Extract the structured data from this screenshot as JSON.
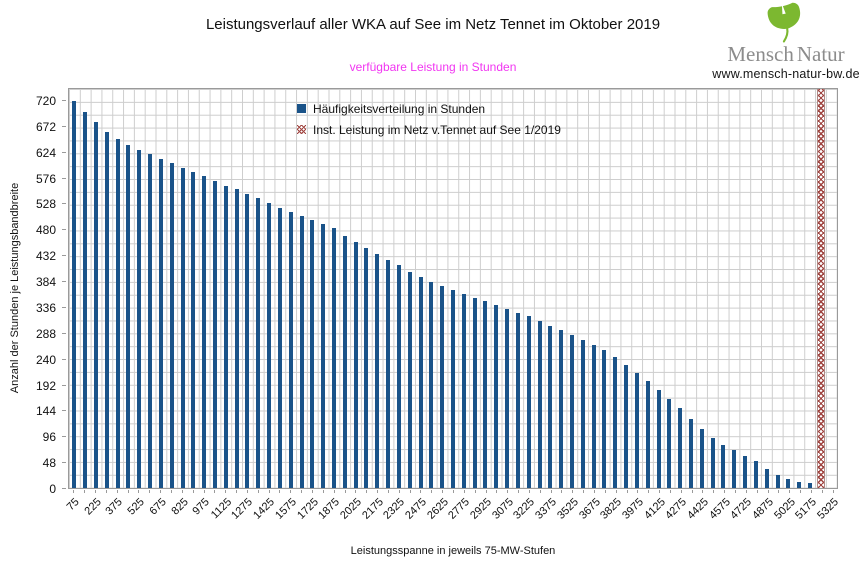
{
  "header": {
    "title": "Leistungsverlauf aller WKA auf See im Netz Tennet im Oktober 2019",
    "subtitle": "verfügbare Leistung in Stunden",
    "logo": {
      "leaf_icon": "ginkgo-leaf-icon",
      "leaf_color": "#7cb830",
      "brand_part1": "Mensch",
      "brand_part2": "Natur",
      "website": "www.mensch-natur-bw.de"
    }
  },
  "chart_data": {
    "type": "bar",
    "title": "Leistungsverlauf aller WKA auf See im Netz Tennet im Oktober 2019",
    "subtitle": "verfügbare Leistung in Stunden",
    "xlabel": "Leistungsspanne in jeweils 75-MW-Stufen",
    "ylabel": "Anzahl der Stunden je Leistungsbandbreite",
    "ylim": [
      0,
      744
    ],
    "yticks": [
      0,
      48,
      96,
      144,
      192,
      240,
      288,
      336,
      384,
      432,
      480,
      528,
      576,
      624,
      672,
      720
    ],
    "grid": {
      "minor_x_step": 75,
      "minor_y_step": 24,
      "color": "#cdcdcd"
    },
    "legend_position": "top-center-inside",
    "categories": [
      75,
      150,
      225,
      300,
      375,
      450,
      525,
      600,
      675,
      750,
      825,
      900,
      975,
      1050,
      1125,
      1200,
      1275,
      1350,
      1425,
      1500,
      1575,
      1650,
      1725,
      1800,
      1875,
      1950,
      2025,
      2100,
      2175,
      2250,
      2325,
      2400,
      2475,
      2550,
      2625,
      2700,
      2775,
      2850,
      2925,
      3000,
      3075,
      3150,
      3225,
      3300,
      3375,
      3450,
      3525,
      3600,
      3675,
      3750,
      3825,
      3900,
      3975,
      4050,
      4125,
      4200,
      4275,
      4350,
      4425,
      4500,
      4575,
      4650,
      4725,
      4800,
      4875,
      4950,
      5025,
      5100,
      5175,
      5250,
      5325
    ],
    "x_tick_labels": [
      "75",
      "225",
      "375",
      "525",
      "675",
      "825",
      "975",
      "1125",
      "1275",
      "1425",
      "1575",
      "1725",
      "1875",
      "2025",
      "2175",
      "2325",
      "2475",
      "2625",
      "2775",
      "2925",
      "3075",
      "3225",
      "3375",
      "3525",
      "3675",
      "3825",
      "3975",
      "4125",
      "4275",
      "4425",
      "4575",
      "4725",
      "4875",
      "5025",
      "5175",
      "5325"
    ],
    "series": [
      {
        "name": "Häufigkeitsverteilung in Stunden",
        "type": "bar",
        "color": "#1a5389",
        "values": [
          721,
          701,
          683,
          664,
          650,
          640,
          631,
          622,
          614,
          606,
          597,
          589,
          581,
          572,
          564,
          557,
          549,
          541,
          532,
          523,
          515,
          507,
          500,
          492,
          484,
          470,
          458,
          447,
          437,
          425,
          415,
          403,
          393,
          384,
          376,
          369,
          362,
          354,
          348,
          341,
          334,
          327,
          320,
          312,
          303,
          294,
          286,
          276,
          266,
          257,
          244,
          229,
          214,
          199,
          183,
          166,
          150,
          129,
          110,
          94,
          80,
          71,
          60,
          51,
          35,
          25,
          17,
          12,
          9,
          0,
          0
        ]
      },
      {
        "name": "Inst. Leistung im Netz v.Tennet auf See 1/2019",
        "type": "full-height-marker",
        "color": "#a04541",
        "pattern": "crosshatch",
        "x_position": 5250,
        "full_height": true
      }
    ]
  }
}
